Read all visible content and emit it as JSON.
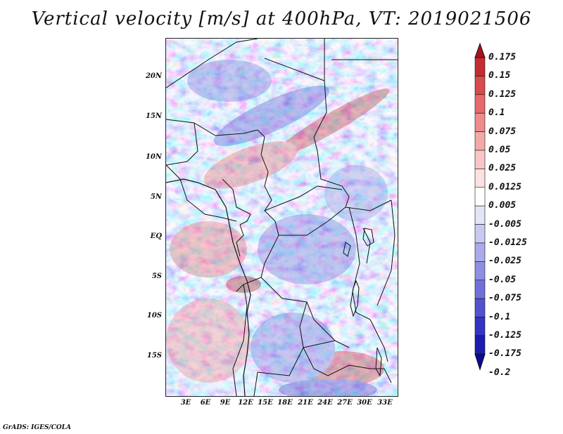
{
  "title": "Vertical velocity [m/s] at 400hPa, VT: 2019021506",
  "credit": "GrADS: IGES/COLA",
  "map": {
    "lat_labels": [
      "20N",
      "15N",
      "10N",
      "5N",
      "EQ",
      "5S",
      "10S",
      "15S"
    ],
    "lon_labels": [
      "3E",
      "6E",
      "9E",
      "12E",
      "15E",
      "18E",
      "21E",
      "24E",
      "27E",
      "30E",
      "33E"
    ]
  },
  "colorbar": {
    "levels": [
      "0.175",
      "0.15",
      "0.125",
      "0.1",
      "0.075",
      "0.05",
      "0.025",
      "0.0125",
      "0.005",
      "-0.005",
      "-0.0125",
      "-0.025",
      "-0.05",
      "-0.075",
      "-0.1",
      "-0.125",
      "-0.175",
      "-0.2"
    ],
    "colors": [
      "#a8141a",
      "#c42c2f",
      "#d84a4c",
      "#e66a6a",
      "#ee8b8b",
      "#f4a9a9",
      "#f8c6c6",
      "#fbe1e1",
      "#ffffff",
      "#e4e4f7",
      "#c9c9f1",
      "#ababea",
      "#8f8fe2",
      "#7070da",
      "#5252d0",
      "#3434c4",
      "#1c1cb0",
      "#0a0a96"
    ]
  }
}
